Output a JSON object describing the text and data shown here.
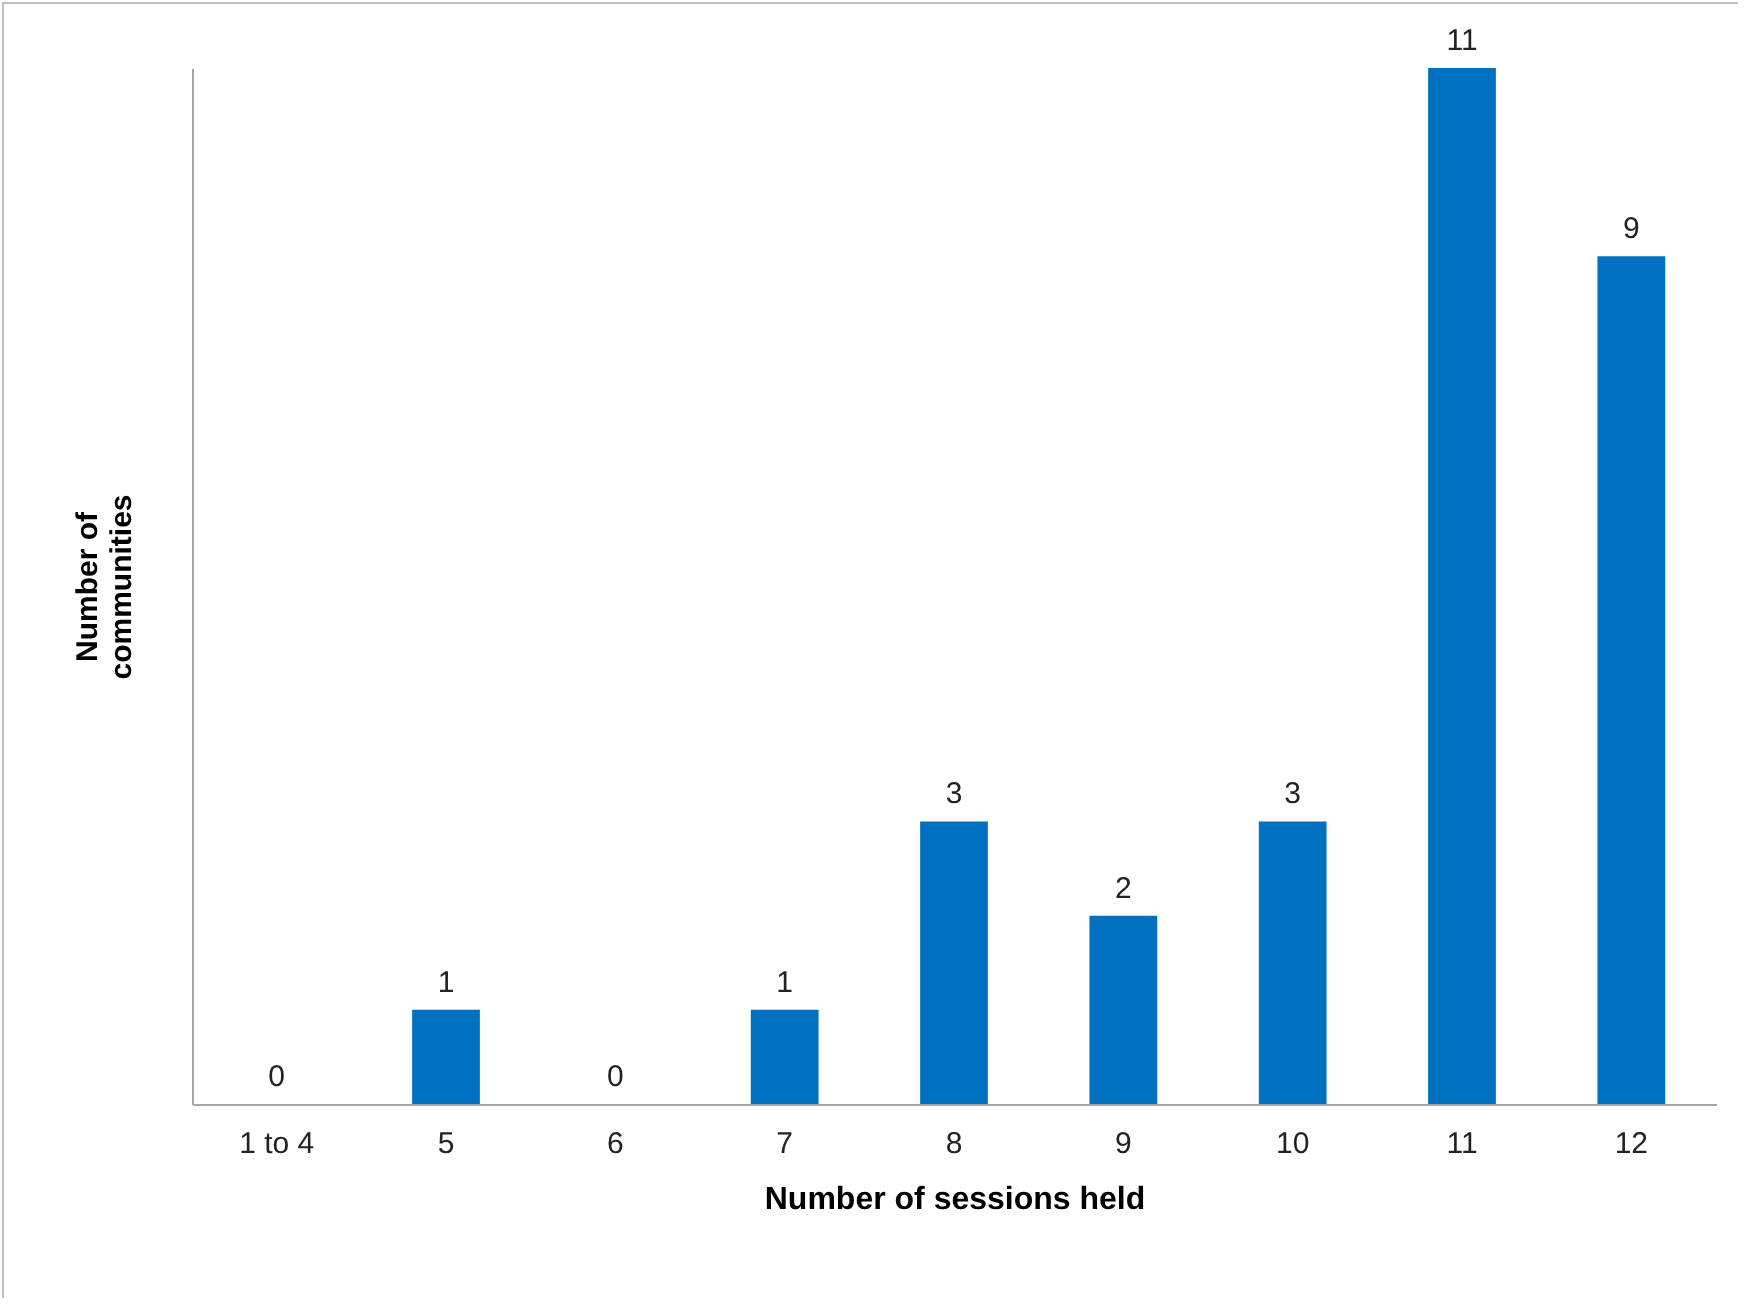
{
  "chart_data": {
    "type": "bar",
    "xlabel": "Number of sessions held",
    "ylabel": "Number of communities",
    "categories": [
      "1 to 4",
      "5",
      "6",
      "7",
      "8",
      "9",
      "10",
      "11",
      "12"
    ],
    "values": [
      0,
      1,
      0,
      1,
      3,
      2,
      3,
      11,
      9
    ],
    "color": "#0070c0",
    "data_labels": true,
    "grid": false,
    "tick_labels": "x"
  }
}
